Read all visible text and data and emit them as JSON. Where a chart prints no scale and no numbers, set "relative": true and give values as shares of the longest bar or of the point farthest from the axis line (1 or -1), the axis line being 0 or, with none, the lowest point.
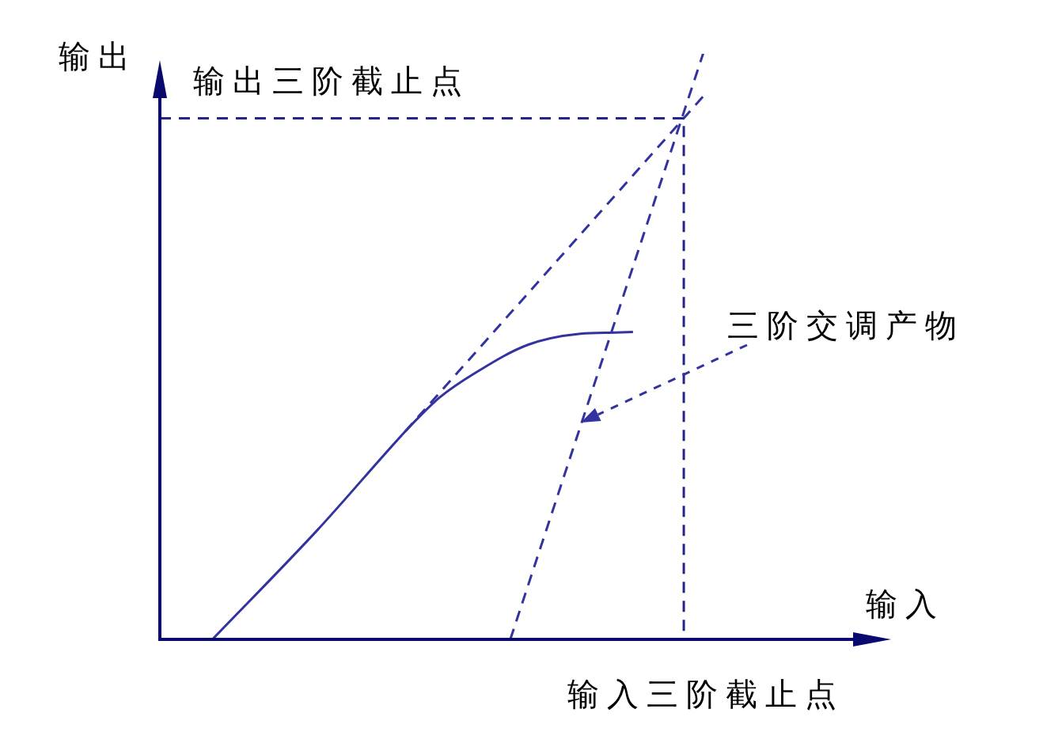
{
  "chart_data": {
    "type": "line",
    "xlabel": "输入",
    "ylabel": "输出",
    "relative": true,
    "marker": "none",
    "categories": [
      null,
      null,
      null,
      null,
      null,
      null,
      null,
      null,
      null,
      null,
      null,
      null,
      null,
      null,
      null,
      null,
      null,
      null,
      null,
      null,
      null,
      null,
      null,
      null,
      null,
      null,
      null,
      null,
      null,
      null,
      null,
      null,
      null,
      null,
      null,
      null,
      null,
      null,
      null,
      null,
      null,
      null,
      null
    ],
    "series": [
      {
        "color": "#3333a0",
        "line_style": "solid",
        "values": [
          null,
          null,
          null,
          0,
          null,
          null,
          null,
          null,
          null,
          0.187,
          null,
          null,
          null,
          null,
          0.355,
          0.386,
          0.414,
          null,
          0.455,
          null,
          null,
          0.503,
          null,
          null,
          0.522,
          null,
          0.524,
          0.525,
          null,
          null,
          null,
          null,
          null,
          null,
          null,
          null,
          null,
          null,
          null,
          null,
          null,
          null,
          null
        ]
      },
      {
        "color": "#3333a0",
        "line_style": "dashed",
        "values": [
          null,
          null,
          null,
          null,
          null,
          null,
          null,
          null,
          null,
          null,
          null,
          null,
          null,
          null,
          0.355,
          null,
          null,
          null,
          null,
          null,
          null,
          null,
          null,
          null,
          null,
          null,
          null,
          null,
          null,
          null,
          null,
          0.927,
          null,
          null,
          null,
          null,
          null,
          null,
          null,
          null,
          null,
          null,
          null
        ]
      },
      {
        "name": "三阶交调产物",
        "color": "#3333a0",
        "line_style": "dashed",
        "values": [
          null,
          null,
          null,
          null,
          null,
          null,
          null,
          null,
          null,
          null,
          null,
          null,
          null,
          null,
          null,
          null,
          null,
          null,
          null,
          null,
          0,
          null,
          null,
          null,
          null,
          null,
          null,
          null,
          null,
          null,
          null,
          1,
          null,
          null,
          null,
          null,
          null,
          null,
          null,
          null,
          null,
          null,
          null
        ]
      }
    ],
    "ref_lines": [
      {
        "axis": "y",
        "value": 0.89,
        "label": "输出三阶截止点",
        "color": "#24248f",
        "line_style": "dashed"
      }
    ],
    "annotations": [
      "输入三阶截止点"
    ]
  }
}
